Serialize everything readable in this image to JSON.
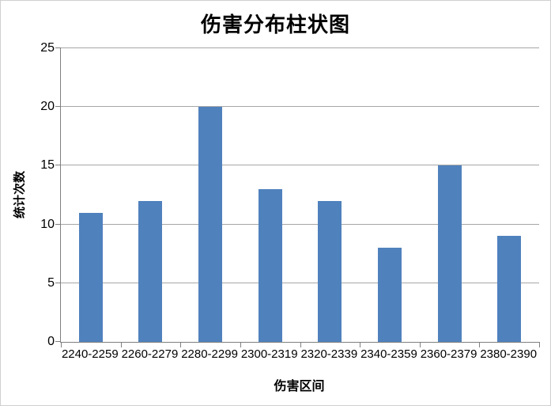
{
  "chart_data": {
    "type": "bar",
    "title": "伤害分布柱状图",
    "xlabel": "伤害区间",
    "ylabel": "统计次数",
    "categories": [
      "2240-2259",
      "2260-2279",
      "2280-2299",
      "2300-2319",
      "2320-2339",
      "2340-2359",
      "2360-2379",
      "2380-2390"
    ],
    "values": [
      11,
      12,
      20,
      13,
      12,
      8,
      15,
      9
    ],
    "ylim": [
      0,
      25
    ],
    "yticks": [
      0,
      5,
      10,
      15,
      20,
      25
    ],
    "grid": true,
    "legend": "none",
    "colors": {
      "bar": "#4f81bd",
      "gridline": "#a6a6a6",
      "axis": "#7f7f7f",
      "background": "#ffffff",
      "border": "#cfcfcf",
      "text": "#000000"
    }
  }
}
